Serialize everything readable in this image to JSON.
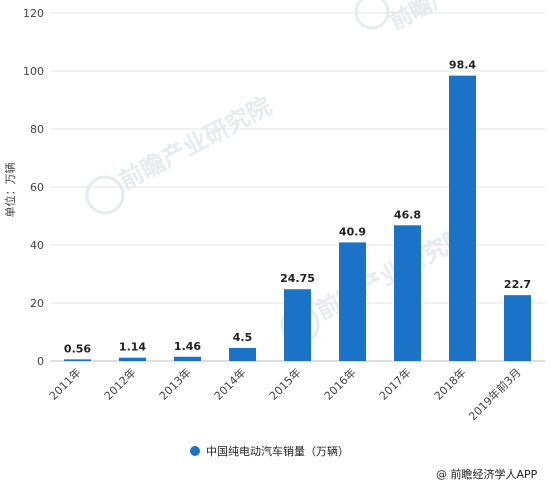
{
  "chart_data": {
    "type": "bar",
    "categories": [
      "2011年",
      "2012年",
      "2013年",
      "2014年",
      "2015年",
      "2016年",
      "2017年",
      "2018年",
      "2019年前3月"
    ],
    "series": [
      {
        "name": "中国纯电动汽车销量（万辆）",
        "values": [
          0.56,
          1.14,
          1.46,
          4.5,
          24.75,
          40.9,
          46.8,
          98.4,
          22.7
        ],
        "color": "#1a73c6"
      }
    ],
    "data_labels": [
      "0.56",
      "1.14",
      "1.46",
      "4.5",
      "24.75",
      "40.9",
      "46.8",
      "98.4",
      "22.7"
    ],
    "ylabel": "单位：万辆",
    "ylim": [
      0,
      120
    ],
    "yticks": [
      0,
      20,
      40,
      60,
      80,
      100,
      120
    ],
    "grid": "horizontal",
    "legend_position": "bottom-center"
  },
  "watermark": {
    "text": "前瞻产业研究院"
  },
  "credit": {
    "text": "@ 前瞻经济学人APP"
  }
}
